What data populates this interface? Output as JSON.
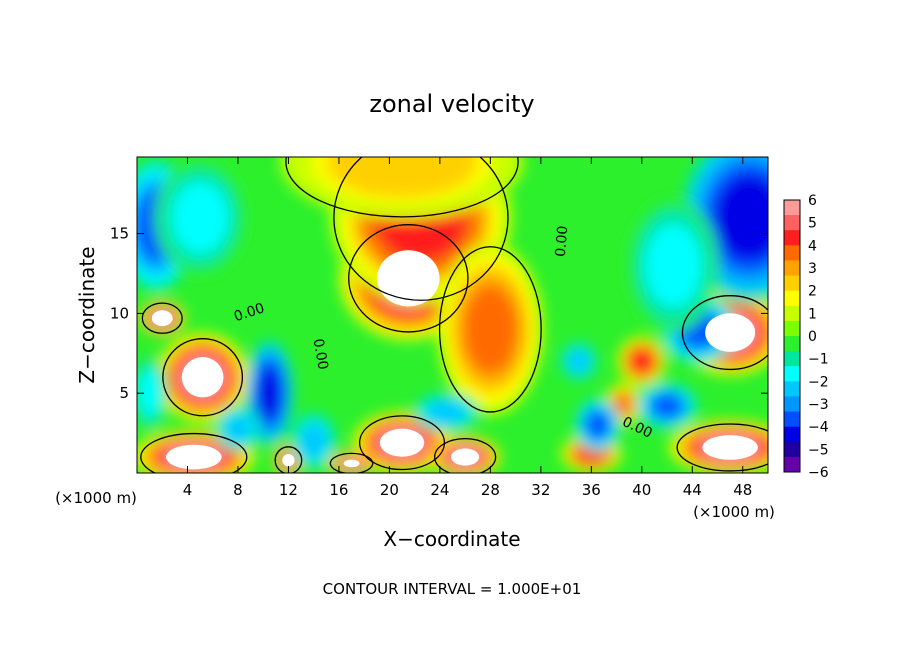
{
  "chart_data": {
    "type": "heatmap",
    "title": "zonal velocity",
    "xlabel": "X−coordinate",
    "ylabel": "Z−coordinate",
    "x_unit_left": "(×1000 m)",
    "x_unit_right": "(×1000 m)",
    "footer": "CONTOUR INTERVAL = 1.000E+01",
    "xlim": [
      0,
      50
    ],
    "ylim": [
      0,
      19.8
    ],
    "x_ticks": [
      4,
      8,
      12,
      16,
      20,
      24,
      28,
      32,
      36,
      40,
      44,
      48
    ],
    "y_ticks": [
      5,
      10,
      15
    ],
    "colorbar": {
      "min": -6,
      "max": 6,
      "tick_labels": [
        "6",
        "5",
        "4",
        "3",
        "2",
        "1",
        "0",
        "−1",
        "−2",
        "−3",
        "−4",
        "−5",
        "−6"
      ],
      "colors": [
        "#ff9a9a",
        "#ff6060",
        "#ff1f1f",
        "#ff6a00",
        "#ffa200",
        "#ffd000",
        "#ffff00",
        "#c8ff00",
        "#7cff00",
        "#2cf02c",
        "#00e6a0",
        "#00ffff",
        "#00c8ff",
        "#0096ff",
        "#0050ff",
        "#0000e6",
        "#2000a0",
        "#6600aa"
      ]
    },
    "contour_labels": [
      "0.00",
      "0.00",
      "0.00",
      "0.00"
    ],
    "saturation": "white beyond colorbar range",
    "features": [
      {
        "kind": "positive_max",
        "x": 21.5,
        "z": 12.2,
        "rx": 4.5,
        "rz": 3.2,
        "value": 14
      },
      {
        "kind": "positive",
        "x": 22.5,
        "z": 16.0,
        "rx": 6.0,
        "rz": 4.5,
        "value": 5
      },
      {
        "kind": "positive",
        "x": 28.0,
        "z": 9.0,
        "rx": 3.5,
        "rz": 4.5,
        "value": 4
      },
      {
        "kind": "positive",
        "x": 21.0,
        "z": 19.5,
        "rx": 8.0,
        "rz": 3.0,
        "value": 3
      },
      {
        "kind": "positive_max",
        "x": 5.2,
        "z": 6.0,
        "rx": 3.0,
        "rz": 2.3,
        "value": 10
      },
      {
        "kind": "positive_max",
        "x": 2.0,
        "z": 9.7,
        "rx": 1.5,
        "rz": 0.9,
        "value": 9
      },
      {
        "kind": "positive_max",
        "x": 47.0,
        "z": 8.8,
        "rx": 3.6,
        "rz": 2.2,
        "value": 11
      },
      {
        "kind": "positive_max",
        "x": 4.5,
        "z": 1.0,
        "rx": 4.0,
        "rz": 1.4,
        "value": 9
      },
      {
        "kind": "positive_max",
        "x": 21.0,
        "z": 1.9,
        "rx": 3.2,
        "rz": 1.6,
        "value": 9
      },
      {
        "kind": "positive_max",
        "x": 26.0,
        "z": 1.0,
        "rx": 2.3,
        "rz": 1.1,
        "value": 8
      },
      {
        "kind": "positive_max",
        "x": 12.0,
        "z": 0.8,
        "rx": 1.0,
        "rz": 0.8,
        "value": 8
      },
      {
        "kind": "positive_max",
        "x": 17.0,
        "z": 0.6,
        "rx": 1.6,
        "rz": 0.6,
        "value": 7
      },
      {
        "kind": "positive_max",
        "x": 47.0,
        "z": 1.6,
        "rx": 4.0,
        "rz": 1.4,
        "value": 9
      },
      {
        "kind": "positive",
        "x": 38.5,
        "z": 4.3,
        "rx": 1.2,
        "rz": 1.1,
        "value": 4
      },
      {
        "kind": "positive",
        "x": 40.0,
        "z": 7.0,
        "rx": 1.6,
        "rz": 1.3,
        "value": 5
      },
      {
        "kind": "positive",
        "x": 36.0,
        "z": 1.2,
        "rx": 2.0,
        "rz": 1.0,
        "value": 5
      },
      {
        "kind": "negative",
        "x": 10.5,
        "z": 5.0,
        "rx": 1.6,
        "rz": 2.8,
        "value": -5
      },
      {
        "kind": "negative",
        "x": 1.5,
        "z": 15.5,
        "rx": 2.5,
        "rz": 3.5,
        "value": -4
      },
      {
        "kind": "negative",
        "x": 48.5,
        "z": 16.0,
        "rx": 4.5,
        "rz": 4.5,
        "value": -5
      },
      {
        "kind": "negative",
        "x": 5.0,
        "z": 16.0,
        "rx": 3.0,
        "rz": 3.0,
        "value": -2
      },
      {
        "kind": "negative",
        "x": 36.5,
        "z": 3.0,
        "rx": 1.5,
        "rz": 1.4,
        "value": -4
      },
      {
        "kind": "negative",
        "x": 35.0,
        "z": 7.0,
        "rx": 1.2,
        "rz": 1.0,
        "value": -3
      },
      {
        "kind": "negative",
        "x": 42.0,
        "z": 4.2,
        "rx": 2.0,
        "rz": 1.2,
        "value": -4
      },
      {
        "kind": "negative",
        "x": 44.5,
        "z": 9.0,
        "rx": 2.5,
        "rz": 1.8,
        "value": -4
      },
      {
        "kind": "negative",
        "x": 24.5,
        "z": 3.8,
        "rx": 2.2,
        "rz": 1.0,
        "value": -3
      },
      {
        "kind": "negative",
        "x": 14.0,
        "z": 2.0,
        "rx": 1.5,
        "rz": 1.5,
        "value": -3
      },
      {
        "kind": "negative",
        "x": 8.0,
        "z": 2.8,
        "rx": 1.5,
        "rz": 1.2,
        "value": -3
      },
      {
        "kind": "negative",
        "x": 1.0,
        "z": 5.0,
        "rx": 1.2,
        "rz": 2.0,
        "value": -2
      },
      {
        "kind": "negative",
        "x": 42.5,
        "z": 13.0,
        "rx": 3.0,
        "rz": 3.5,
        "value": -2
      }
    ]
  }
}
